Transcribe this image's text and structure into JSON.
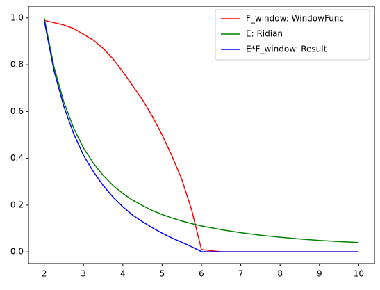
{
  "chart_data": {
    "type": "line",
    "x": [
      2,
      2.25,
      2.5,
      2.75,
      3,
      3.25,
      3.5,
      3.75,
      4,
      4.25,
      4.5,
      4.75,
      5,
      5.25,
      5.5,
      5.75,
      6,
      6.5,
      7,
      7.5,
      8,
      8.5,
      9,
      9.5,
      10
    ],
    "series": [
      {
        "name": "F_window: WindowFunc",
        "color": "#ff0000",
        "values": [
          0.99,
          0.98,
          0.97,
          0.955,
          0.93,
          0.905,
          0.87,
          0.825,
          0.77,
          0.71,
          0.65,
          0.58,
          0.5,
          0.41,
          0.31,
          0.18,
          0.01,
          0,
          0,
          0,
          0,
          0,
          0,
          0,
          0
        ]
      },
      {
        "name": "E: Ridian",
        "color": "#008000",
        "values": [
          1,
          0.79,
          0.64,
          0.529,
          0.444,
          0.379,
          0.327,
          0.284,
          0.25,
          0.221,
          0.198,
          0.177,
          0.16,
          0.145,
          0.132,
          0.121,
          0.111,
          0.095,
          0.082,
          0.071,
          0.0625,
          0.055,
          0.049,
          0.044,
          0.04
        ]
      },
      {
        "name": "E*F_window: Result",
        "color": "#0000ff",
        "values": [
          0.99,
          0.774,
          0.621,
          0.505,
          0.413,
          0.343,
          0.284,
          0.234,
          0.193,
          0.157,
          0.129,
          0.103,
          0.08,
          0.059,
          0.041,
          0.022,
          0.001,
          0,
          0,
          0,
          0,
          0,
          0,
          0,
          0
        ]
      }
    ],
    "xlim": [
      1.6,
      10.4
    ],
    "ylim": [
      -0.05,
      1.05
    ],
    "xticks": [
      2,
      3,
      4,
      5,
      6,
      7,
      8,
      9,
      10
    ],
    "yticks": [
      {
        "value": 0,
        "label": "0.0"
      },
      {
        "value": 0.2,
        "label": "0.2"
      },
      {
        "value": 0.4,
        "label": "0.4"
      },
      {
        "value": 0.6,
        "label": "0.6"
      },
      {
        "value": 0.8,
        "label": "0.8"
      },
      {
        "value": 1,
        "label": "1.0"
      }
    ],
    "legend": "upper right",
    "grid": false
  }
}
